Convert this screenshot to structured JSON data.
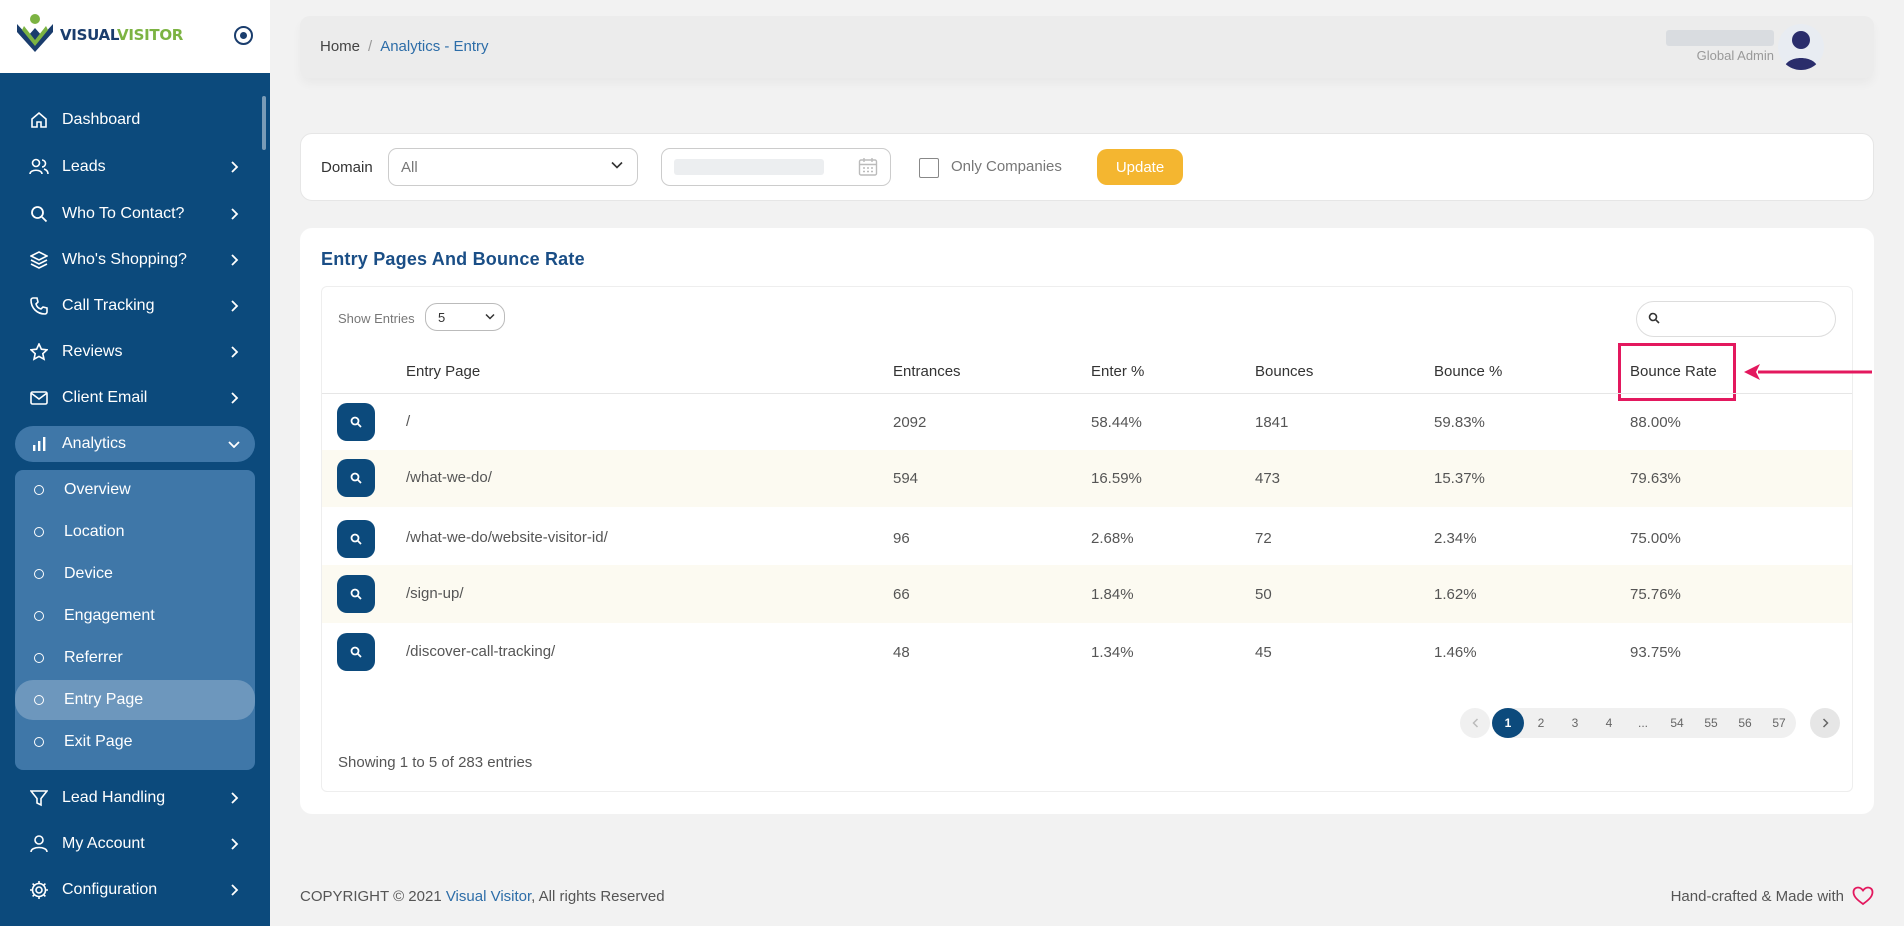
{
  "brand": {
    "name_part1": "VISUAL",
    "name_part2": "VISITOR"
  },
  "sidebar": {
    "items": [
      {
        "label": "Dashboard",
        "icon": "home-icon"
      },
      {
        "label": "Leads",
        "icon": "users-icon"
      },
      {
        "label": "Who To Contact?",
        "icon": "search-icon"
      },
      {
        "label": "Who's Shopping?",
        "icon": "layers-icon"
      },
      {
        "label": "Call Tracking",
        "icon": "phone-icon"
      },
      {
        "label": "Reviews",
        "icon": "star-icon"
      },
      {
        "label": "Client Email",
        "icon": "mail-icon"
      },
      {
        "label": "Analytics",
        "icon": "bar-chart-icon"
      },
      {
        "label": "Lead Handling",
        "icon": "filter-icon"
      },
      {
        "label": "My Account",
        "icon": "user-icon"
      },
      {
        "label": "Configuration",
        "icon": "gear-icon"
      }
    ],
    "analytics_sub": [
      {
        "label": "Overview"
      },
      {
        "label": "Location"
      },
      {
        "label": "Device"
      },
      {
        "label": "Engagement"
      },
      {
        "label": "Referrer"
      },
      {
        "label": "Entry Page"
      },
      {
        "label": "Exit Page"
      }
    ]
  },
  "header": {
    "breadcrumb_home": "Home",
    "breadcrumb_sep": "/",
    "breadcrumb_current": "Analytics - Entry",
    "user_role": "Global Admin"
  },
  "filters": {
    "domain_label": "Domain",
    "domain_value": "All",
    "only_companies_label": "Only Companies",
    "update_label": "Update"
  },
  "table": {
    "title": "Entry Pages And Bounce Rate",
    "show_entries_label": "Show Entries",
    "show_entries_value": "5",
    "columns": [
      "Entry Page",
      "Entrances",
      "Enter %",
      "Bounces",
      "Bounce %",
      "Bounce Rate"
    ],
    "rows": [
      {
        "page": "/",
        "entrances": "2092",
        "enter_pct": "58.44%",
        "bounces": "1841",
        "bounce_pct": "59.83%",
        "bounce_rate": "88.00%"
      },
      {
        "page": "/what-we-do/",
        "entrances": "594",
        "enter_pct": "16.59%",
        "bounces": "473",
        "bounce_pct": "15.37%",
        "bounce_rate": "79.63%"
      },
      {
        "page": "/what-we-do/website-visitor-id/",
        "entrances": "96",
        "enter_pct": "2.68%",
        "bounces": "72",
        "bounce_pct": "2.34%",
        "bounce_rate": "75.00%"
      },
      {
        "page": "/sign-up/",
        "entrances": "66",
        "enter_pct": "1.84%",
        "bounces": "50",
        "bounce_pct": "1.62%",
        "bounce_rate": "75.76%"
      },
      {
        "page": "/discover-call-tracking/",
        "entrances": "48",
        "enter_pct": "1.34%",
        "bounces": "45",
        "bounce_pct": "1.46%",
        "bounce_rate": "93.75%"
      }
    ],
    "pagination": [
      "1",
      "2",
      "3",
      "4",
      "...",
      "54",
      "55",
      "56",
      "57"
    ],
    "showing_text": "Showing 1 to 5 of 283 entries"
  },
  "footer": {
    "copyright_prefix": "COPYRIGHT © 2021 ",
    "copyright_link": "Visual Visitor",
    "copyright_suffix": ", All rights Reserved",
    "right_text": "Hand-crafted & Made with"
  },
  "colors": {
    "sidebar_bg": "#0c4a7c",
    "accent_blue": "#1a4e86",
    "update_button": "#f4b630",
    "highlight_red": "#e3185e"
  }
}
